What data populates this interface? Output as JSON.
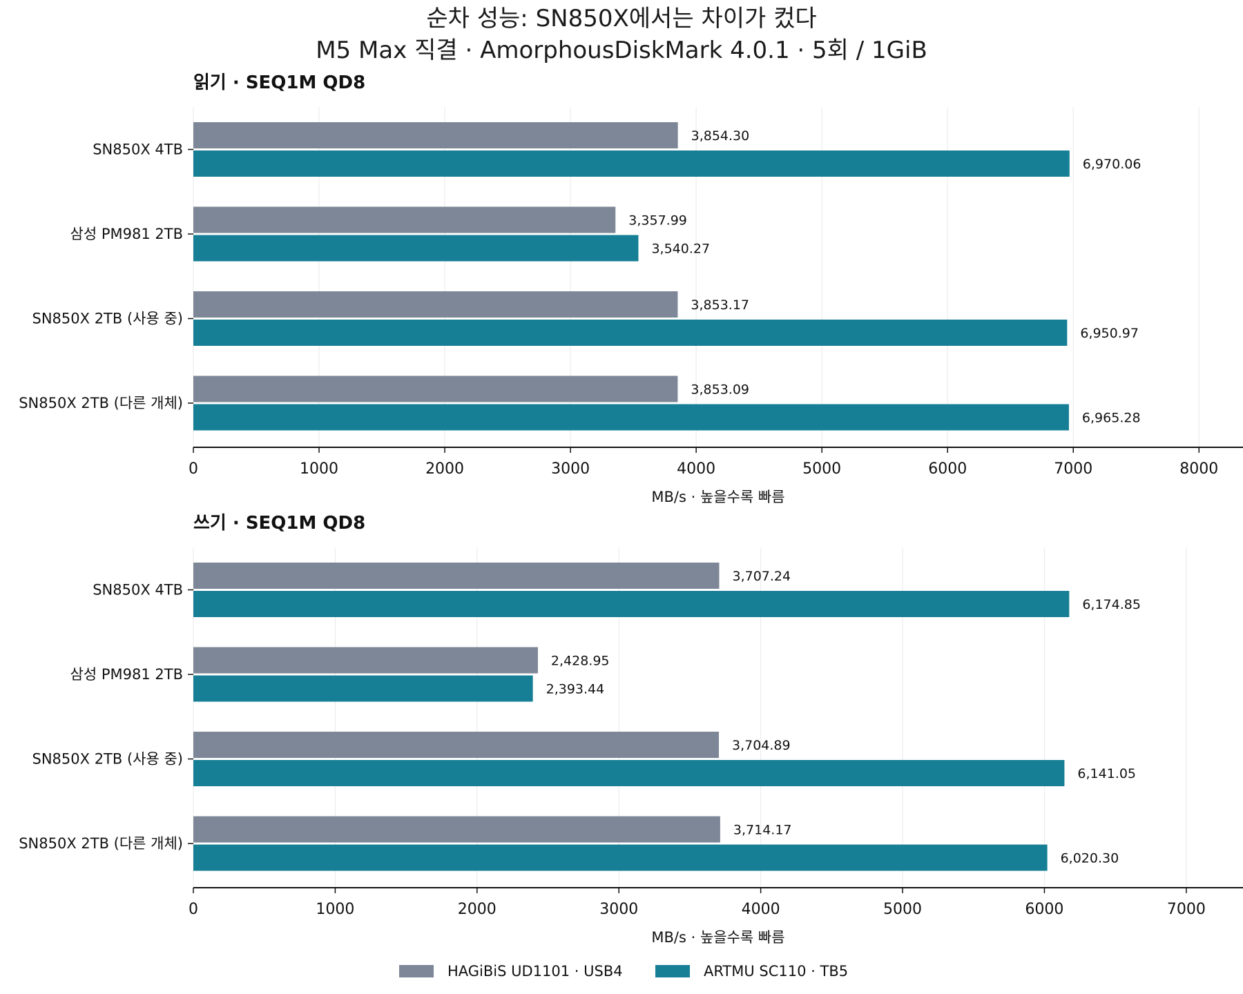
{
  "title_line1": "순차 성능: SN850X에서는 차이가 컸다",
  "title_line2": "M5 Max 직결 · AmorphousDiskMark 4.0.1 · 5회 / 1GiB",
  "colors": {
    "HAGiBiS": "#7d8797",
    "ARTMU": "#167e95"
  },
  "legend": [
    "HAGiBiS UD1101 · USB4",
    "ARTMU SC110 · TB5"
  ],
  "chart_data": [
    {
      "type": "bar",
      "orientation": "horizontal",
      "title": "읽기 · SEQ1M QD8",
      "categories": [
        "SN850X 4TB",
        "삼성 PM981 2TB",
        "SN850X 2TB (사용 중)",
        "SN850X 2TB (다른 개체)"
      ],
      "series": [
        {
          "name": "HAGiBiS UD1101 · USB4",
          "values": [
            3854.3,
            3357.99,
            3853.17,
            3853.09
          ],
          "labels": [
            "3,854.30",
            "3,357.99",
            "3,853.17",
            "3,853.09"
          ]
        },
        {
          "name": "ARTMU SC110 · TB5",
          "values": [
            6970.06,
            3540.27,
            6950.97,
            6965.28
          ],
          "labels": [
            "6,970.06",
            "3,540.27",
            "6,950.97",
            "6,965.28"
          ]
        }
      ],
      "xlabel": "MB/s · 높을수록 빠름",
      "xlim": [
        0,
        8350
      ],
      "xticks": [
        0,
        1000,
        2000,
        3000,
        4000,
        5000,
        6000,
        7000,
        8000
      ],
      "grid": "x"
    },
    {
      "type": "bar",
      "orientation": "horizontal",
      "title": "쓰기 · SEQ1M QD8",
      "categories": [
        "SN850X 4TB",
        "삼성 PM981 2TB",
        "SN850X 2TB (사용 중)",
        "SN850X 2TB (다른 개체)"
      ],
      "series": [
        {
          "name": "HAGiBiS UD1101 · USB4",
          "values": [
            3707.24,
            2428.95,
            3704.89,
            3714.17
          ],
          "labels": [
            "3,707.24",
            "2,428.95",
            "3,704.89",
            "3,714.17"
          ]
        },
        {
          "name": "ARTMU SC110 · TB5",
          "values": [
            6174.85,
            2393.44,
            6141.05,
            6020.3
          ],
          "labels": [
            "6,174.85",
            "2,393.44",
            "6,141.05",
            "6,020.30"
          ]
        }
      ],
      "xlabel": "MB/s · 높을수록 빠름",
      "xlim": [
        0,
        7400
      ],
      "xticks": [
        0,
        1000,
        2000,
        3000,
        4000,
        5000,
        6000,
        7000
      ],
      "grid": "x"
    }
  ]
}
